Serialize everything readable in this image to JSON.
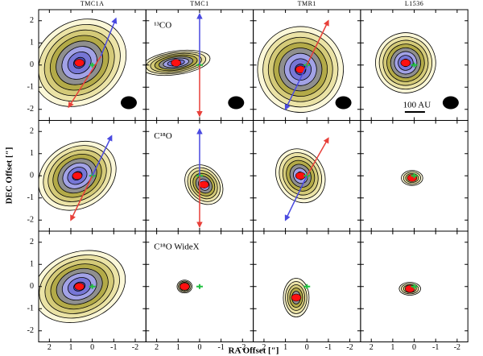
{
  "columns": [
    "TMC1A",
    "TMC1",
    "TMR1",
    "L1536"
  ],
  "panel_labels": [
    "¹³CO",
    "C¹⁸O",
    "C¹⁸O WideX"
  ],
  "scale_bar": "100 AU",
  "axes": {
    "x_label": "RA Offset [″]",
    "y_label": "DEC Offset [″]",
    "xlim": [
      2.5,
      -2.5
    ],
    "ylim": [
      -2.5,
      2.5
    ],
    "xticks": [
      2,
      1,
      0,
      -1,
      -2
    ],
    "yticks": [
      -2,
      -1,
      0,
      1,
      2
    ]
  }
}
